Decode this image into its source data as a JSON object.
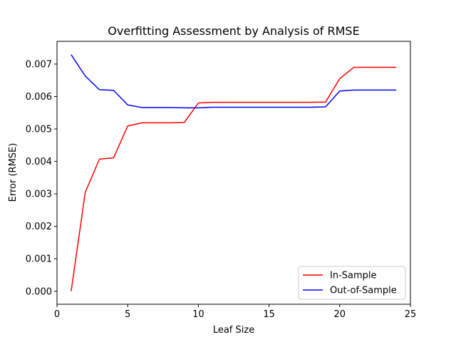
{
  "chart_data": {
    "type": "line",
    "title": "Overfitting Assessment by Analysis of RMSE",
    "xlabel": "Leaf Size",
    "ylabel": "Error (RMSE)",
    "xlim": [
      0,
      25
    ],
    "ylim": [
      -0.0004,
      0.0077
    ],
    "xticks": [
      0,
      5,
      10,
      15,
      20,
      25
    ],
    "xtick_labels": [
      "0",
      "5",
      "10",
      "15",
      "20",
      "25"
    ],
    "yticks": [
      0.0,
      0.001,
      0.002,
      0.003,
      0.004,
      0.005,
      0.006,
      0.007
    ],
    "ytick_labels": [
      "0.000",
      "0.001",
      "0.002",
      "0.003",
      "0.004",
      "0.005",
      "0.006",
      "0.007"
    ],
    "grid": false,
    "legend_position": "bottom-right",
    "x": [
      1,
      2,
      3,
      4,
      5,
      6,
      7,
      8,
      9,
      10,
      11,
      12,
      13,
      14,
      15,
      16,
      17,
      18,
      19,
      20,
      21,
      22,
      23,
      24
    ],
    "series": [
      {
        "name": "In-Sample",
        "color": "#ff0000",
        "values": [
          0.0,
          0.00305,
          0.00407,
          0.00411,
          0.00509,
          0.00519,
          0.00519,
          0.00519,
          0.0052,
          0.0058,
          0.00582,
          0.00582,
          0.00582,
          0.00582,
          0.00582,
          0.00582,
          0.00582,
          0.00582,
          0.00583,
          0.00655,
          0.0069,
          0.0069,
          0.0069,
          0.0069
        ]
      },
      {
        "name": "Out-of-Sample",
        "color": "#0000ff",
        "values": [
          0.00729,
          0.00663,
          0.00621,
          0.00619,
          0.00574,
          0.00566,
          0.00566,
          0.00566,
          0.00565,
          0.00565,
          0.00567,
          0.00567,
          0.00567,
          0.00567,
          0.00567,
          0.00567,
          0.00567,
          0.00567,
          0.00568,
          0.00617,
          0.0062,
          0.0062,
          0.0062,
          0.0062
        ]
      }
    ]
  }
}
